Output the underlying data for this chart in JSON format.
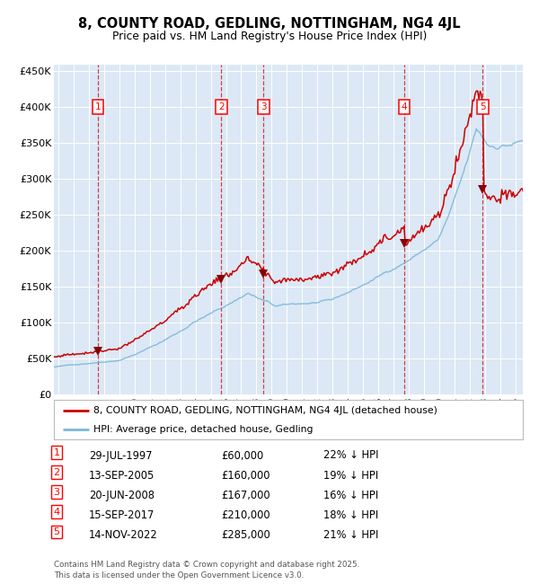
{
  "title": "8, COUNTY ROAD, GEDLING, NOTTINGHAM, NG4 4JL",
  "subtitle": "Price paid vs. HM Land Registry's House Price Index (HPI)",
  "plot_bg_color": "#dce8f5",
  "ylim": [
    0,
    460000
  ],
  "xlim_start": 1994.7,
  "xlim_end": 2025.5,
  "yticks": [
    0,
    50000,
    100000,
    150000,
    200000,
    250000,
    300000,
    350000,
    400000,
    450000
  ],
  "ytick_labels": [
    "£0",
    "£50K",
    "£100K",
    "£150K",
    "£200K",
    "£250K",
    "£300K",
    "£350K",
    "£400K",
    "£450K"
  ],
  "xticks": [
    1995,
    1996,
    1997,
    1998,
    1999,
    2000,
    2001,
    2002,
    2003,
    2004,
    2005,
    2006,
    2007,
    2008,
    2009,
    2010,
    2011,
    2012,
    2013,
    2014,
    2015,
    2016,
    2017,
    2018,
    2019,
    2020,
    2021,
    2022,
    2023,
    2024,
    2025
  ],
  "hpi_color": "#7ab8d9",
  "price_color": "#cc0000",
  "marker_color": "#880000",
  "vline_color": "#cc2222",
  "sale_dates": [
    1997.58,
    2005.7,
    2008.47,
    2017.71,
    2022.87
  ],
  "sale_prices": [
    60000,
    160000,
    167000,
    210000,
    285000
  ],
  "sale_labels": [
    "1",
    "2",
    "3",
    "4",
    "5"
  ],
  "legend_property": "8, COUNTY ROAD, GEDLING, NOTTINGHAM, NG4 4JL (detached house)",
  "legend_hpi": "HPI: Average price, detached house, Gedling",
  "table_entries": [
    {
      "num": "1",
      "date": "29-JUL-1997",
      "price": "£60,000",
      "pct": "22%",
      "dir": "↓"
    },
    {
      "num": "2",
      "date": "13-SEP-2005",
      "price": "£160,000",
      "pct": "19%",
      "dir": "↓"
    },
    {
      "num": "3",
      "date": "20-JUN-2008",
      "price": "£167,000",
      "pct": "16%",
      "dir": "↓"
    },
    {
      "num": "4",
      "date": "15-SEP-2017",
      "price": "£210,000",
      "pct": "18%",
      "dir": "↓"
    },
    {
      "num": "5",
      "date": "14-NOV-2022",
      "price": "£285,000",
      "pct": "21%",
      "dir": "↓"
    }
  ],
  "footer": "Contains HM Land Registry data © Crown copyright and database right 2025.\nThis data is licensed under the Open Government Licence v3.0."
}
